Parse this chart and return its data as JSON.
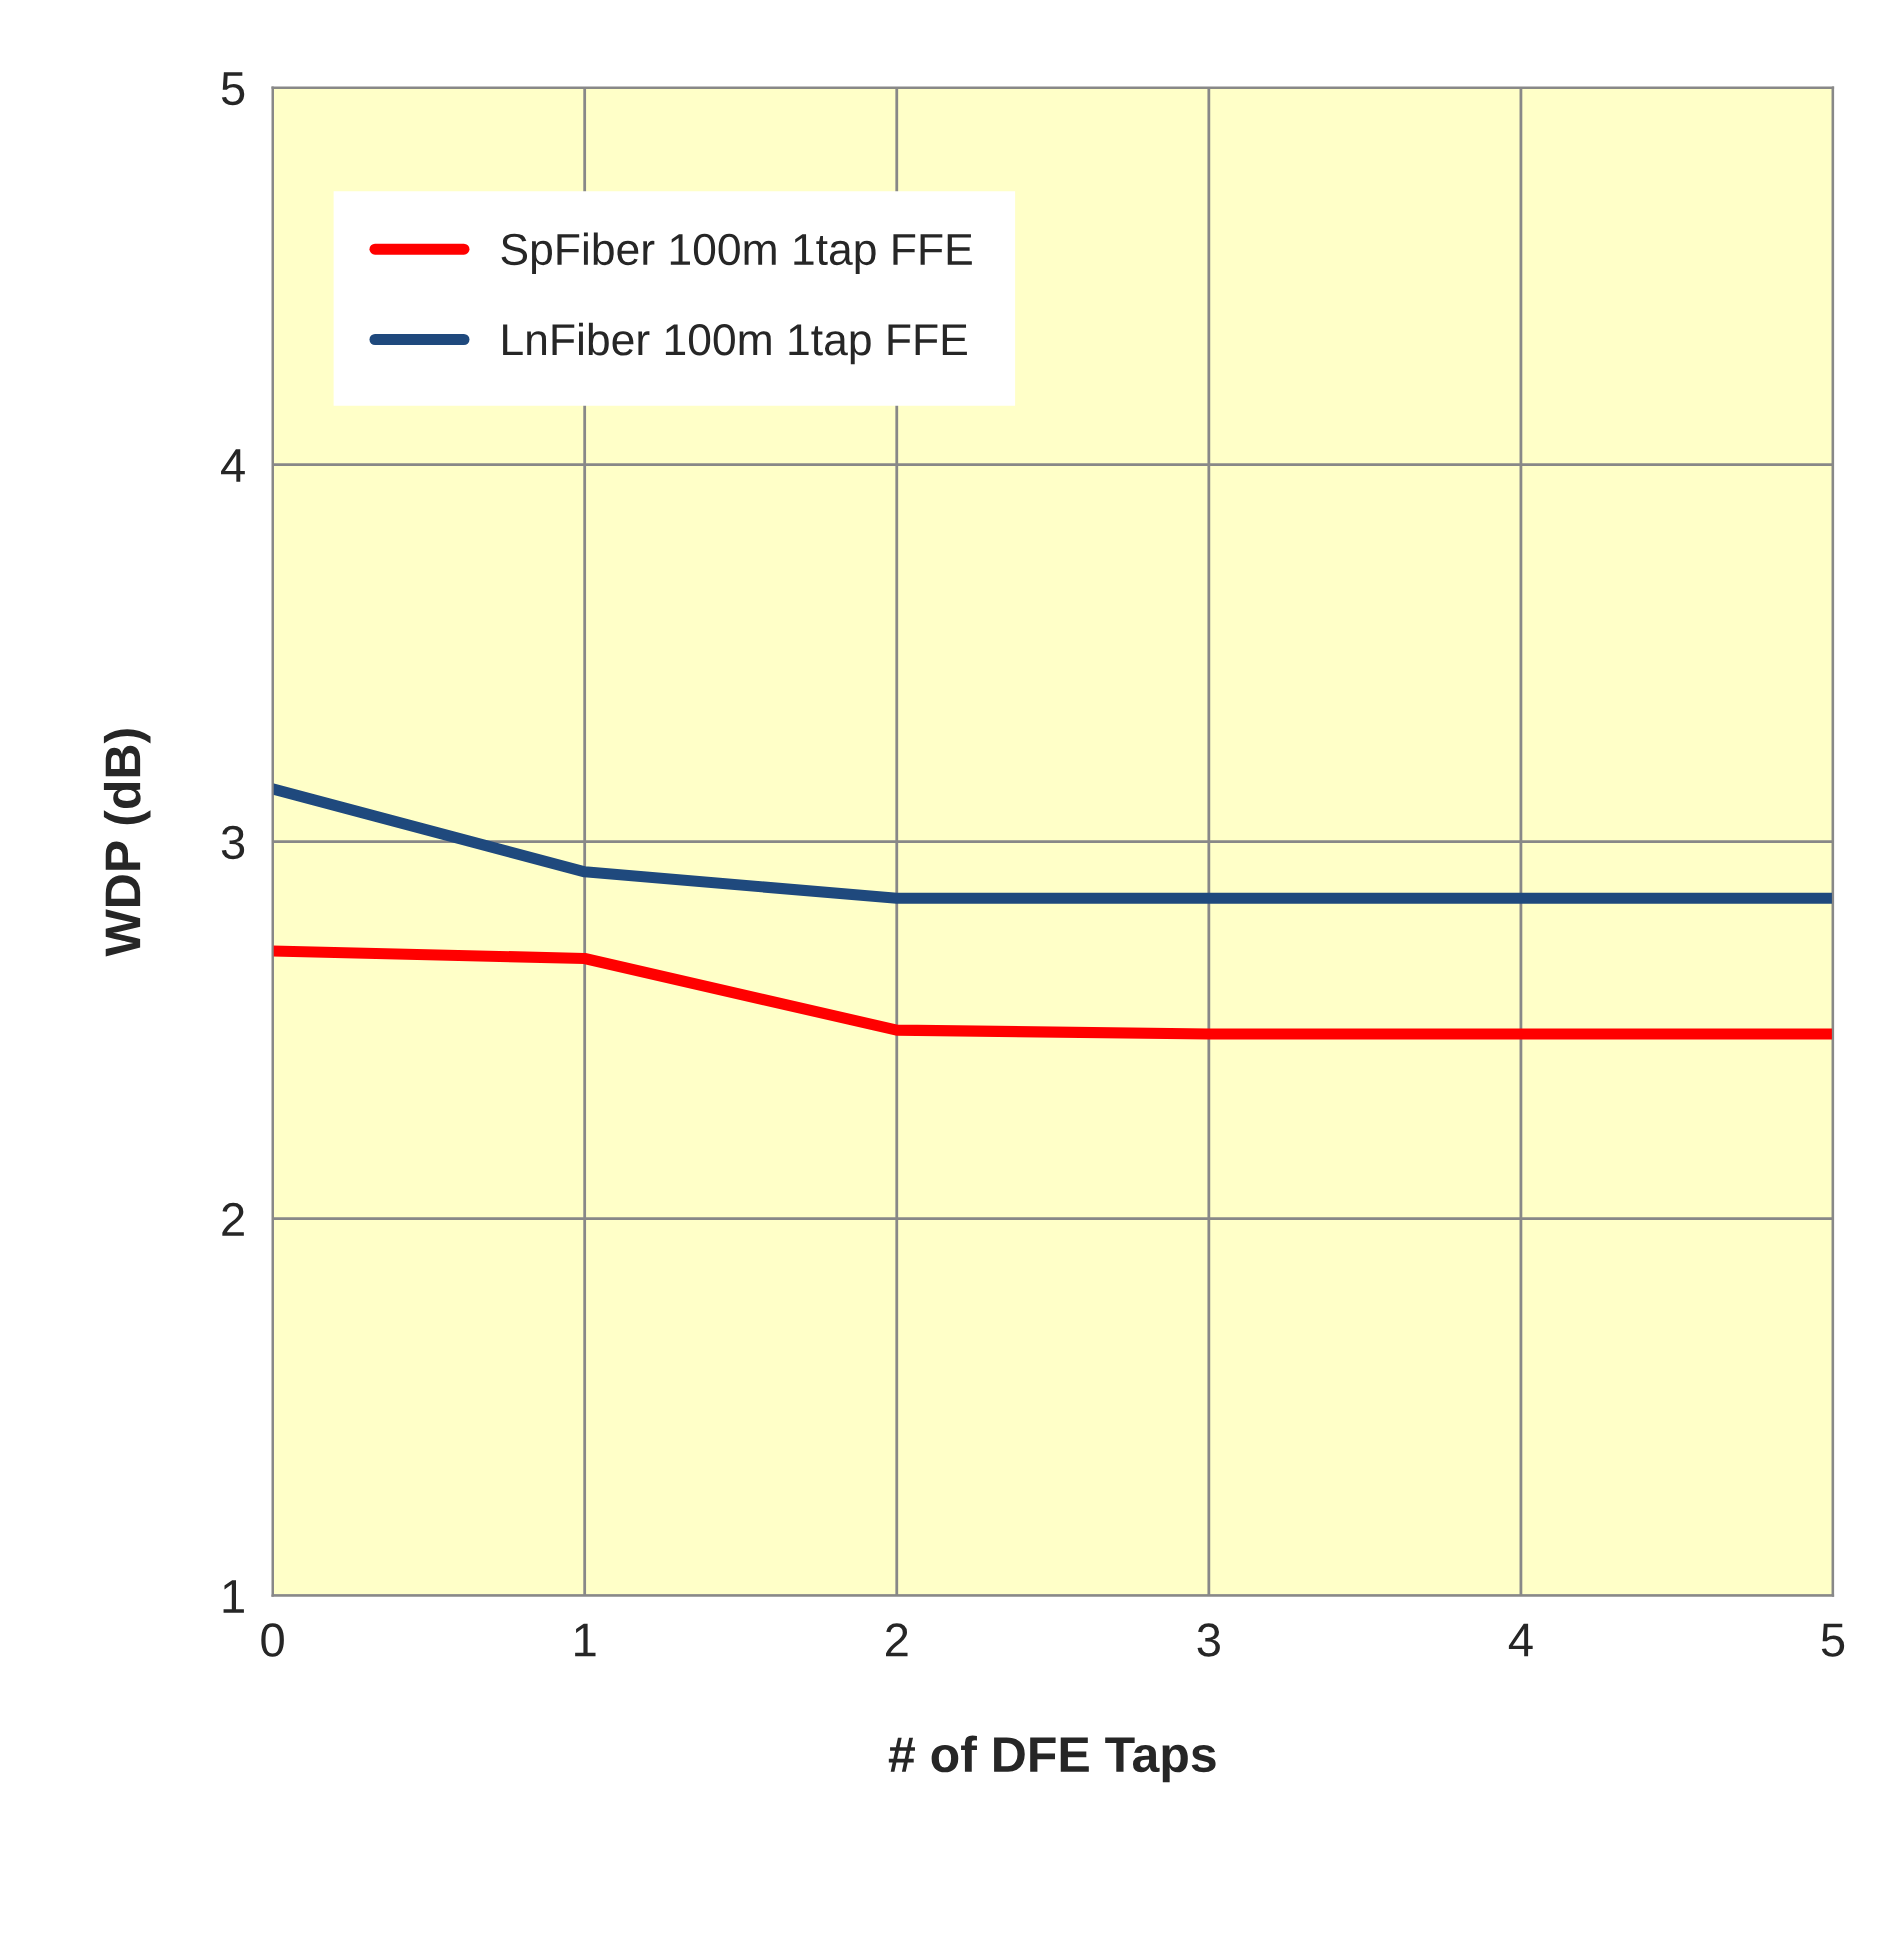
{
  "chart_data": {
    "type": "line",
    "xlabel": "# of DFE Taps",
    "ylabel": "WDP (dB)",
    "x": [
      0,
      1,
      2,
      3,
      4,
      5
    ],
    "series": [
      {
        "name": "SpFiber 100m 1tap FFE",
        "color": "#ff0000",
        "values": [
          2.71,
          2.69,
          2.5,
          2.49,
          2.49,
          2.49
        ]
      },
      {
        "name": "LnFiber 100m 1tap FFE",
        "color": "#1f497d",
        "values": [
          3.14,
          2.92,
          2.85,
          2.85,
          2.85,
          2.85
        ]
      }
    ],
    "xlim": [
      0,
      5
    ],
    "ylim": [
      1,
      5
    ],
    "xticks": [
      0,
      1,
      2,
      3,
      4,
      5
    ],
    "yticks": [
      1,
      2,
      3,
      4,
      5
    ],
    "grid": true,
    "legend": "top left",
    "marker": "none",
    "line_style": "solid"
  }
}
